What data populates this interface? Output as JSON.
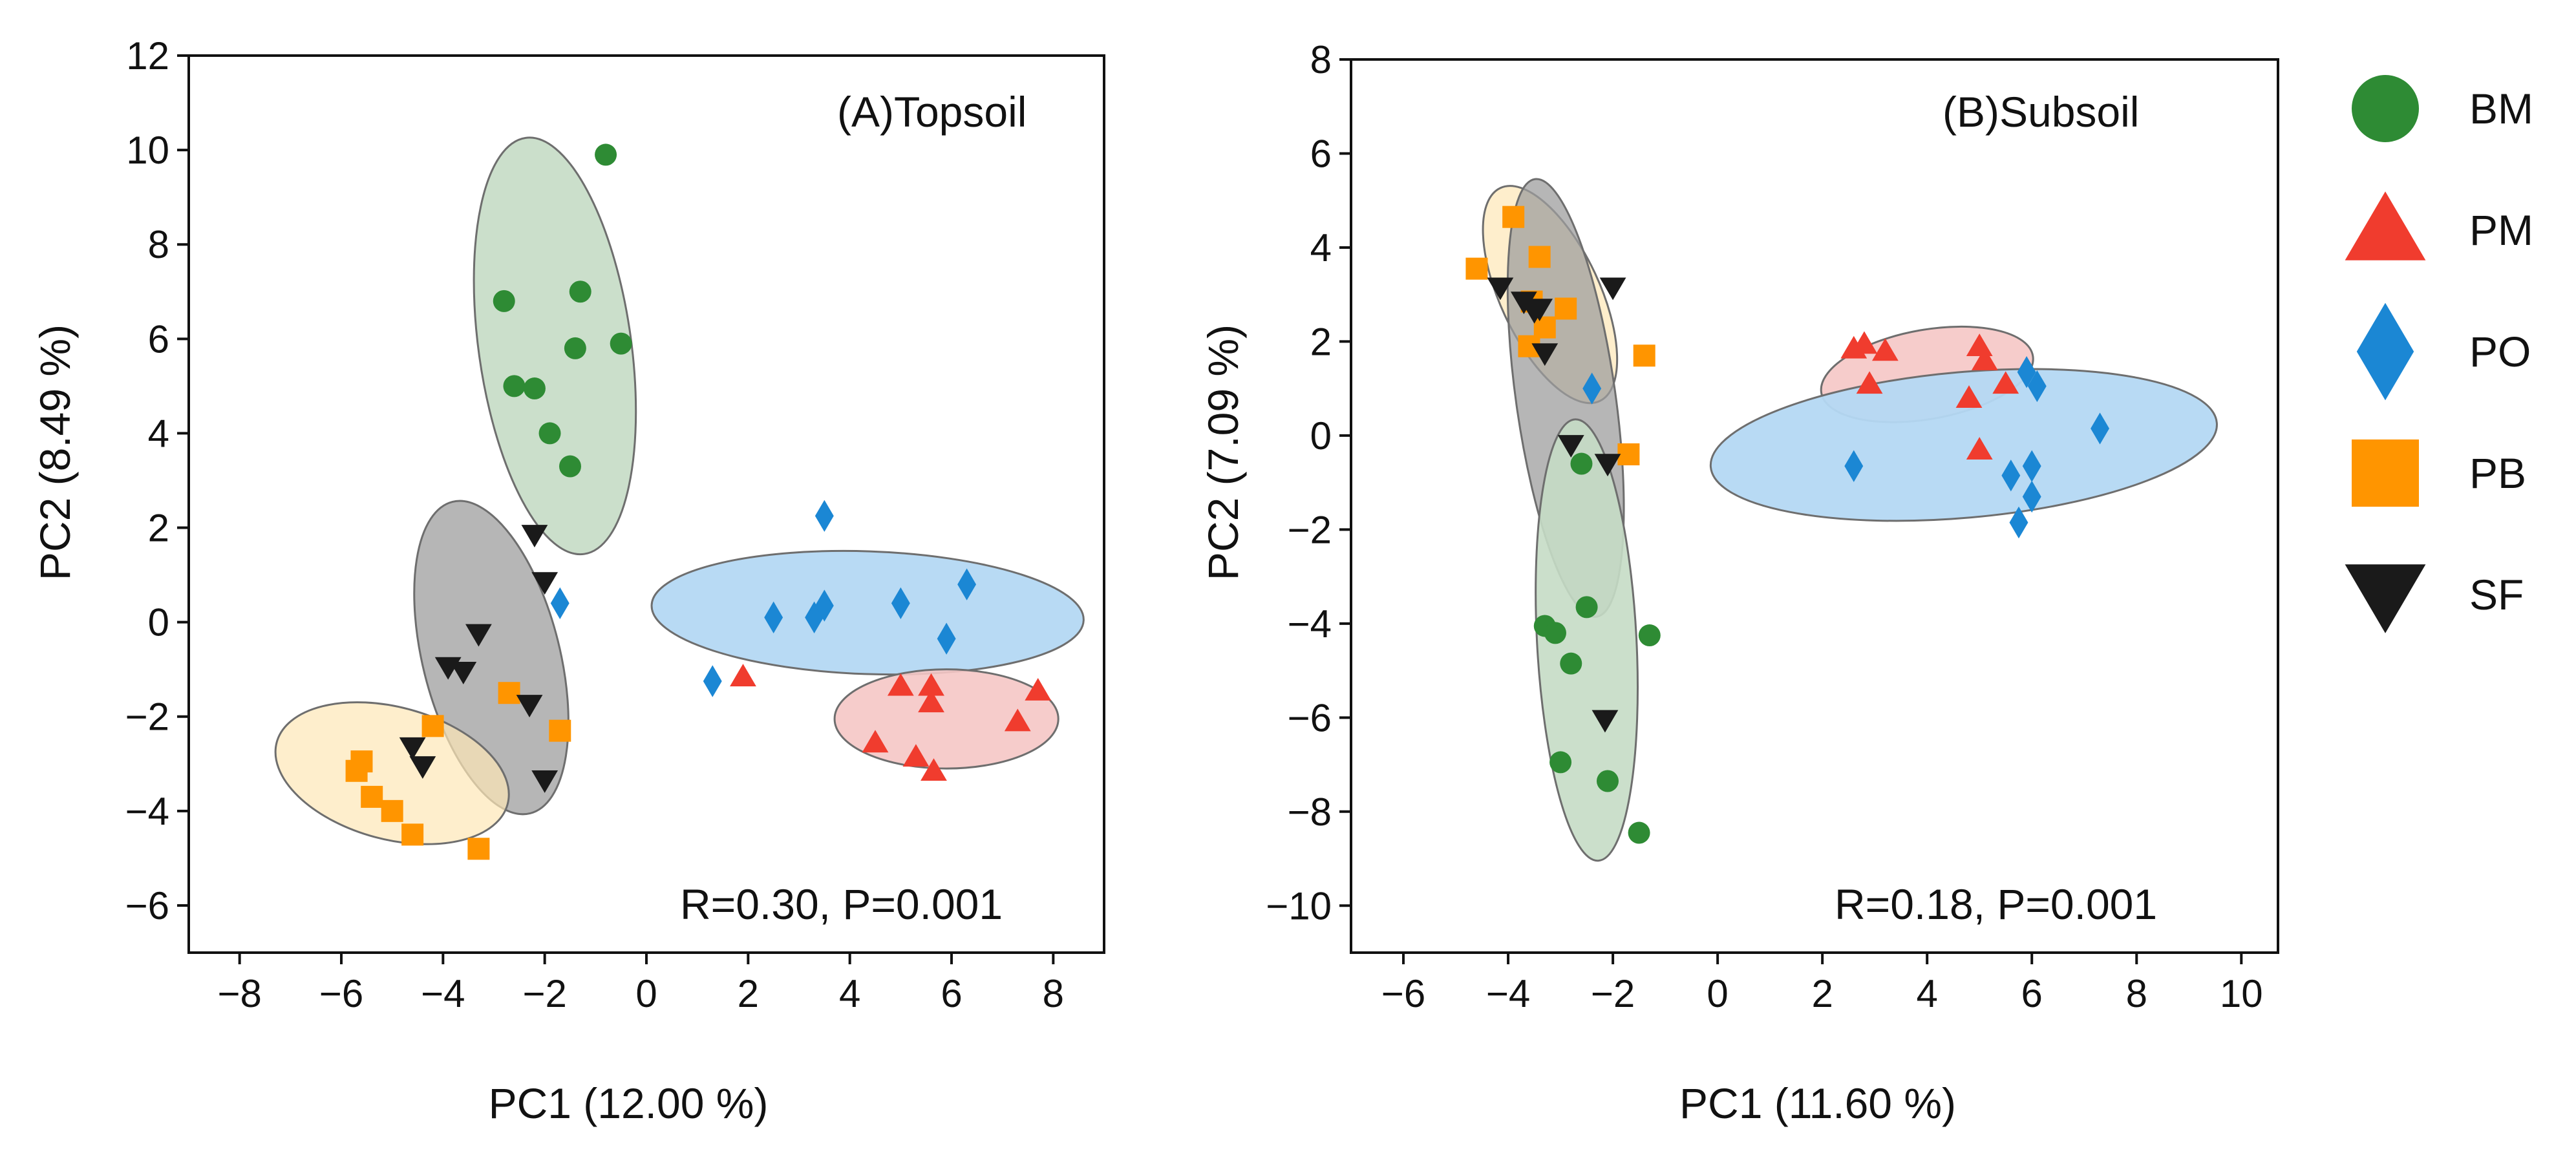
{
  "legend": [
    {
      "key": "BM",
      "label": "BM",
      "marker": "circle",
      "color": "#2e8b34"
    },
    {
      "key": "PM",
      "label": "PM",
      "marker": "triangle-up",
      "color": "#f03c2e"
    },
    {
      "key": "PO",
      "label": "PO",
      "marker": "diamond",
      "color": "#1b87d4"
    },
    {
      "key": "PB",
      "label": "PB",
      "marker": "square",
      "color": "#ff9500"
    },
    {
      "key": "SF",
      "label": "SF",
      "marker": "triangle-down",
      "color": "#1a1a1a"
    }
  ],
  "chart_data": [
    {
      "type": "scatter",
      "title": "(A)Topsoil",
      "annotation": "R=0.30, P=0.001",
      "xlabel": "PC1 (12.00 %)",
      "ylabel": "PC2 (8.49 %)",
      "xlim": [
        -9.0,
        9.0
      ],
      "ylim": [
        -7.0,
        12.0
      ],
      "xticks": [
        -8,
        -6,
        -4,
        -2,
        0,
        2,
        4,
        6,
        8
      ],
      "yticks": [
        -6,
        -4,
        -2,
        0,
        2,
        4,
        6,
        8,
        10,
        12
      ],
      "series": [
        {
          "name": "BM",
          "points": [
            [
              -0.8,
              9.9
            ],
            [
              -2.8,
              6.8
            ],
            [
              -1.3,
              7.0
            ],
            [
              -0.5,
              5.9
            ],
            [
              -1.4,
              5.8
            ],
            [
              -2.6,
              5.0
            ],
            [
              -2.2,
              4.95
            ],
            [
              -1.9,
              4.0
            ],
            [
              -1.5,
              3.3
            ]
          ]
        },
        {
          "name": "PM",
          "points": [
            [
              1.9,
              -1.15
            ],
            [
              4.5,
              -2.55
            ],
            [
              5.0,
              -1.35
            ],
            [
              5.6,
              -1.35
            ],
            [
              5.6,
              -1.7
            ],
            [
              5.3,
              -2.85
            ],
            [
              5.65,
              -3.15
            ],
            [
              7.3,
              -2.1
            ],
            [
              7.7,
              -1.45
            ]
          ]
        },
        {
          "name": "PO",
          "points": [
            [
              1.3,
              -1.25
            ],
            [
              2.5,
              0.1
            ],
            [
              3.3,
              0.1
            ],
            [
              3.5,
              0.35
            ],
            [
              3.5,
              2.25
            ],
            [
              5.0,
              0.4
            ],
            [
              5.9,
              -0.35
            ],
            [
              6.3,
              0.8
            ],
            [
              -1.7,
              0.4
            ]
          ]
        },
        {
          "name": "PB",
          "points": [
            [
              -5.7,
              -3.15
            ],
            [
              -5.6,
              -2.95
            ],
            [
              -5.4,
              -3.7
            ],
            [
              -5.0,
              -4.0
            ],
            [
              -4.6,
              -4.5
            ],
            [
              -4.2,
              -2.2
            ],
            [
              -3.3,
              -4.8
            ],
            [
              -2.7,
              -1.5
            ],
            [
              -1.7,
              -2.3
            ]
          ]
        },
        {
          "name": "SF",
          "points": [
            [
              -2.2,
              1.85
            ],
            [
              -2.0,
              0.85
            ],
            [
              -3.3,
              -0.25
            ],
            [
              -3.9,
              -0.95
            ],
            [
              -3.6,
              -1.05
            ],
            [
              -2.3,
              -1.75
            ],
            [
              -4.6,
              -2.65
            ],
            [
              -4.4,
              -3.05
            ],
            [
              -2.0,
              -3.35
            ]
          ]
        }
      ],
      "ellipses": [
        {
          "group": "BM",
          "center": [
            -1.8,
            5.85
          ],
          "radii": [
            1.5,
            4.45
          ],
          "angle": -8
        },
        {
          "group": "PO",
          "center": [
            4.35,
            0.2
          ],
          "radii": [
            4.25,
            1.3
          ],
          "angle": 2
        },
        {
          "group": "PM",
          "center": [
            5.9,
            -2.05
          ],
          "radii": [
            2.2,
            1.05
          ],
          "angle": 0
        },
        {
          "group": "SF",
          "center": [
            -3.05,
            -0.75
          ],
          "radii": [
            1.35,
            3.4
          ],
          "angle": -14
        },
        {
          "group": "PB",
          "center": [
            -5.0,
            -3.2
          ],
          "radii": [
            2.35,
            1.4
          ],
          "angle": 15
        }
      ]
    },
    {
      "type": "scatter",
      "title": "(B)Subsoil",
      "annotation": "R=0.18, P=0.001",
      "xlabel": "PC1 (11.60 %)",
      "ylabel": "PC2 (7.09 %)",
      "xlim": [
        -7.0,
        10.7
      ],
      "ylim": [
        -11.0,
        8.0
      ],
      "xticks": [
        -6,
        -4,
        -2,
        0,
        2,
        4,
        6,
        8,
        10
      ],
      "yticks": [
        -10,
        -8,
        -6,
        -4,
        -2,
        0,
        2,
        4,
        6,
        8
      ],
      "series": [
        {
          "name": "BM",
          "points": [
            [
              -2.6,
              -0.6
            ],
            [
              -3.3,
              -4.05
            ],
            [
              -3.1,
              -4.2
            ],
            [
              -2.5,
              -3.65
            ],
            [
              -1.3,
              -4.25
            ],
            [
              -2.8,
              -4.85
            ],
            [
              -3.0,
              -6.95
            ],
            [
              -2.1,
              -7.35
            ],
            [
              -1.5,
              -8.45
            ]
          ]
        },
        {
          "name": "PM",
          "points": [
            [
              2.6,
              1.85
            ],
            [
              2.8,
              1.95
            ],
            [
              3.2,
              1.8
            ],
            [
              2.9,
              1.1
            ],
            [
              4.8,
              0.8
            ],
            [
              5.0,
              1.9
            ],
            [
              5.1,
              1.6
            ],
            [
              5.5,
              1.1
            ],
            [
              5.0,
              -0.3
            ]
          ]
        },
        {
          "name": "PO",
          "points": [
            [
              -2.4,
              1.0
            ],
            [
              2.6,
              -0.65
            ],
            [
              5.9,
              1.35
            ],
            [
              6.1,
              1.05
            ],
            [
              7.3,
              0.15
            ],
            [
              5.6,
              -0.85
            ],
            [
              6.0,
              -0.65
            ],
            [
              6.0,
              -1.3
            ],
            [
              5.75,
              -1.85
            ]
          ]
        },
        {
          "name": "PB",
          "points": [
            [
              -4.6,
              3.55
            ],
            [
              -3.9,
              4.65
            ],
            [
              -3.4,
              3.8
            ],
            [
              -3.6,
              1.9
            ],
            [
              -2.9,
              2.7
            ],
            [
              -1.4,
              1.7
            ],
            [
              -1.7,
              -0.4
            ],
            [
              -3.3,
              2.3
            ],
            [
              -3.55,
              2.85
            ]
          ]
        },
        {
          "name": "SF",
          "points": [
            [
              -4.15,
              3.15
            ],
            [
              -3.7,
              2.85
            ],
            [
              -3.4,
              2.7
            ],
            [
              -3.5,
              2.65
            ],
            [
              -3.3,
              1.75
            ],
            [
              -2.0,
              3.15
            ],
            [
              -2.8,
              -0.2
            ],
            [
              -2.1,
              -0.6
            ],
            [
              -2.15,
              -6.05
            ]
          ]
        }
      ],
      "ellipses": [
        {
          "group": "PB",
          "center": [
            -3.2,
            3.0
          ],
          "radii": [
            0.95,
            2.5
          ],
          "angle": -25
        },
        {
          "group": "SF",
          "center": [
            -2.9,
            0.8
          ],
          "radii": [
            0.95,
            4.7
          ],
          "angle": -8
        },
        {
          "group": "BM",
          "center": [
            -2.5,
            -4.35
          ],
          "radii": [
            0.95,
            4.7
          ],
          "angle": -3
        },
        {
          "group": "PM",
          "center": [
            4.0,
            1.3
          ],
          "radii": [
            2.05,
            0.95
          ],
          "angle": -10
        },
        {
          "group": "PO",
          "center": [
            4.7,
            -0.2
          ],
          "radii": [
            4.85,
            1.55
          ],
          "angle": -5
        }
      ]
    }
  ]
}
